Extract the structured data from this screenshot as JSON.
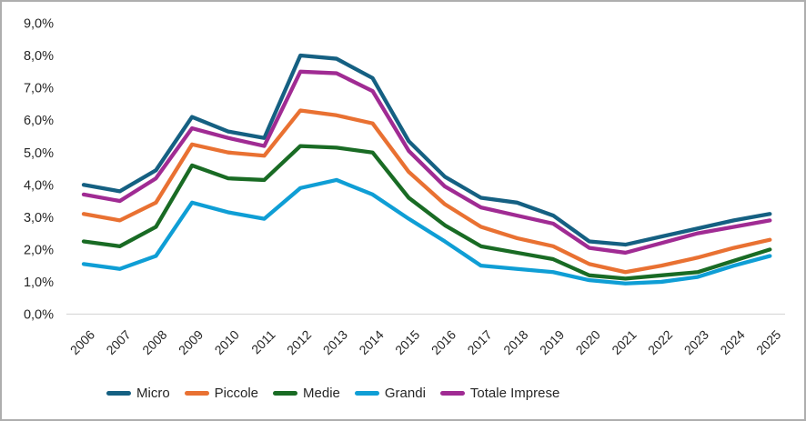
{
  "chart_data": {
    "type": "line",
    "x_labels": [
      "2006",
      "2007",
      "2008",
      "2009",
      "2010",
      "2011",
      "2012",
      "2013",
      "2014",
      "2015",
      "2016",
      "2017",
      "2018",
      "2019",
      "2020",
      "2021",
      "2022",
      "2023",
      "2024",
      "2025"
    ],
    "y_tick_labels": [
      "0,0%",
      "1,0%",
      "2,0%",
      "3,0%",
      "4,0%",
      "5,0%",
      "6,0%",
      "7,0%",
      "8,0%",
      "9,0%"
    ],
    "ylim": [
      0,
      9
    ],
    "grid": false,
    "legend_position": "bottom",
    "axis_color": "#d9d9d9",
    "label_color": "#262626",
    "value_unit": "percent",
    "series": [
      {
        "name": "Micro",
        "color": "#156082",
        "values": [
          4.0,
          3.8,
          4.45,
          6.1,
          5.65,
          5.45,
          8.0,
          7.9,
          7.3,
          5.35,
          4.25,
          3.6,
          3.45,
          3.05,
          2.25,
          2.15,
          2.4,
          2.65,
          2.9,
          3.1
        ]
      },
      {
        "name": "Piccole",
        "color": "#E97132",
        "values": [
          3.1,
          2.9,
          3.45,
          5.25,
          5.0,
          4.9,
          6.3,
          6.15,
          5.9,
          4.4,
          3.4,
          2.7,
          2.35,
          2.1,
          1.55,
          1.3,
          1.5,
          1.75,
          2.05,
          2.3
        ]
      },
      {
        "name": "Medie",
        "color": "#196B24",
        "values": [
          2.25,
          2.1,
          2.7,
          4.6,
          4.2,
          4.15,
          5.2,
          5.15,
          5.0,
          3.6,
          2.75,
          2.1,
          1.9,
          1.7,
          1.2,
          1.1,
          1.2,
          1.3,
          1.65,
          2.0
        ]
      },
      {
        "name": "Grandi",
        "color": "#0F9ED5",
        "values": [
          1.55,
          1.4,
          1.8,
          3.45,
          3.15,
          2.95,
          3.9,
          4.15,
          3.7,
          2.95,
          2.25,
          1.5,
          1.4,
          1.3,
          1.05,
          0.95,
          1.0,
          1.15,
          1.5,
          1.8
        ]
      },
      {
        "name": "Totale Imprese",
        "color": "#A02B93",
        "values": [
          3.7,
          3.5,
          4.2,
          5.75,
          5.45,
          5.2,
          7.5,
          7.45,
          6.9,
          5.05,
          3.95,
          3.3,
          3.05,
          2.8,
          2.05,
          1.9,
          2.2,
          2.5,
          2.7,
          2.9
        ]
      }
    ]
  }
}
